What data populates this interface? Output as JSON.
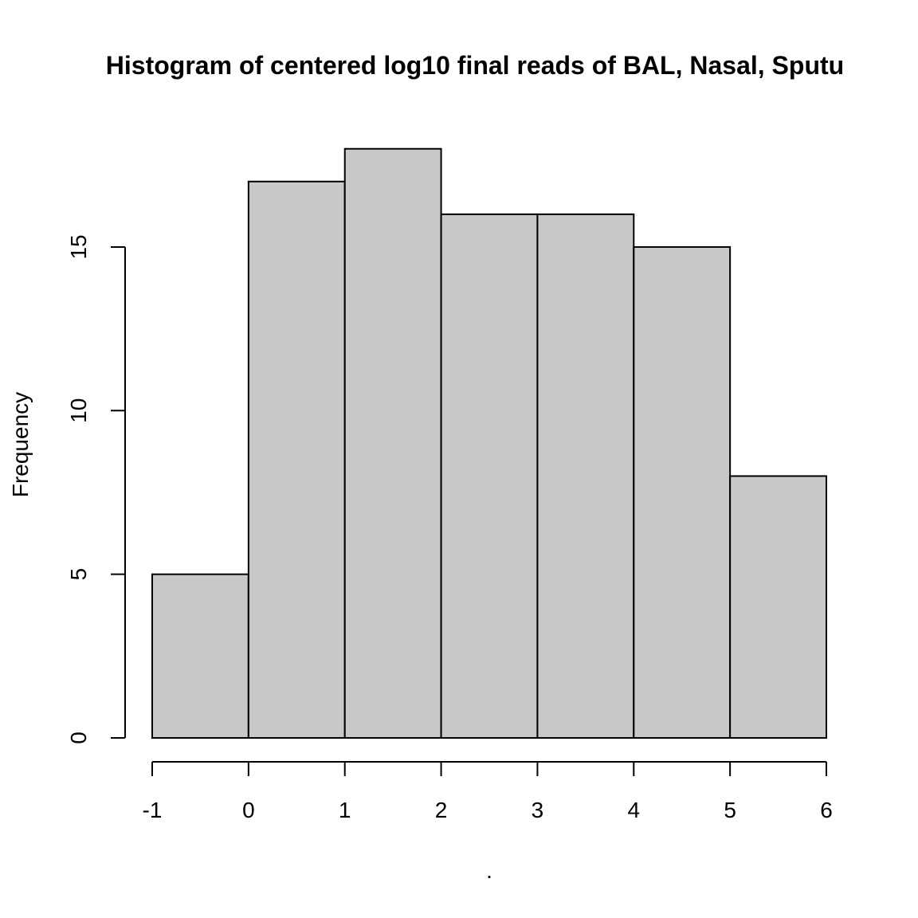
{
  "chart_data": {
    "type": "bar",
    "title": "Histogram of centered log10 final reads of BAL, Nasal, Sputu",
    "xlabel": ".",
    "ylabel": "Frequency",
    "bins": [
      {
        "from": -1,
        "to": 0,
        "count": 5
      },
      {
        "from": 0,
        "to": 1,
        "count": 17
      },
      {
        "from": 1,
        "to": 2,
        "count": 18
      },
      {
        "from": 2,
        "to": 3,
        "count": 16
      },
      {
        "from": 3,
        "to": 4,
        "count": 16
      },
      {
        "from": 4,
        "to": 5,
        "count": 15
      },
      {
        "from": 5,
        "to": 6,
        "count": 8
      }
    ],
    "xlim": [
      -1,
      6
    ],
    "ylim": [
      0,
      18
    ],
    "x_ticks": [
      -1,
      0,
      1,
      2,
      3,
      4,
      5,
      6
    ],
    "x_tick_labels": [
      "-1",
      "0",
      "1",
      "2",
      "3",
      "4",
      "5",
      "6"
    ],
    "y_ticks": [
      0,
      5,
      10,
      15
    ],
    "y_tick_labels": [
      "0",
      "5",
      "10",
      "15"
    ],
    "grid": false,
    "bar_color": "#c8c8c8",
    "edge_color": "#000000"
  }
}
